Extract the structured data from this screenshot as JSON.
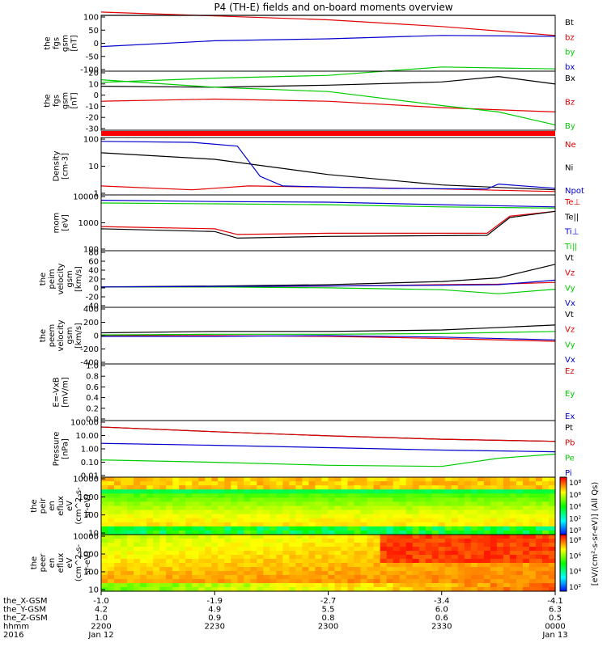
{
  "title": "P4 (TH-E) fields and on-board moments overview",
  "colors": {
    "black": "#000000",
    "red": "#e00000",
    "green": "#00cc00",
    "blue": "#0000cc"
  },
  "chart_data": [
    {
      "type": "line",
      "ylabel_lines": [
        "the",
        "fgs",
        "gsm",
        "[nT]"
      ],
      "yticks": [
        "100",
        "50",
        "0",
        "-50",
        "-100"
      ],
      "ylim": [
        -100,
        100
      ],
      "yscale": "linear",
      "series": [
        {
          "name": "Bt",
          "color": "black",
          "points": [
            [
              0,
              100
            ],
            [
              1,
              100
            ],
            [
              2,
              100
            ],
            [
              3,
              100
            ],
            [
              4,
              100
            ]
          ]
        },
        {
          "name": "bz",
          "color": "red",
          "points": [
            [
              0,
              112
            ],
            [
              1,
              98
            ],
            [
              2,
              84
            ],
            [
              3,
              60
            ],
            [
              4,
              28
            ]
          ]
        },
        {
          "name": "by",
          "color": "green",
          "points": [
            [
              0,
              -140
            ],
            [
              1,
              -125
            ],
            [
              2,
              -115
            ],
            [
              3,
              -85
            ],
            [
              4,
              -92
            ]
          ]
        },
        {
          "name": "bx",
          "color": "blue",
          "points": [
            [
              0,
              -12
            ],
            [
              1,
              9
            ],
            [
              2,
              16
            ],
            [
              3,
              28
            ],
            [
              4,
              25
            ]
          ]
        }
      ]
    },
    {
      "type": "line",
      "ylabel_lines": [
        "the",
        "fgs",
        "gsm",
        "[nT]"
      ],
      "yticks": [
        "20",
        "10",
        "0",
        "-10",
        "-20",
        "-30"
      ],
      "ylim": [
        -35,
        20
      ],
      "yscale": "linear",
      "series": [
        {
          "name": "Bx",
          "color": "black",
          "points": [
            [
              0,
              6
            ],
            [
              1,
              5
            ],
            [
              2,
              7
            ],
            [
              3,
              10
            ],
            [
              3.5,
              15
            ],
            [
              4,
              8
            ]
          ]
        },
        {
          "name": "Bz",
          "color": "red",
          "points": [
            [
              0,
              -8
            ],
            [
              1,
              -6
            ],
            [
              2,
              -8
            ],
            [
              3,
              -14
            ],
            [
              4,
              -18
            ]
          ]
        },
        {
          "name": "By",
          "color": "green",
          "points": [
            [
              0,
              12
            ],
            [
              1,
              5
            ],
            [
              2,
              1
            ],
            [
              3,
              -12
            ],
            [
              3.5,
              -18
            ],
            [
              4,
              -30
            ]
          ]
        }
      ]
    },
    {
      "type": "line",
      "ylabel_lines": [
        "Density",
        "[cm-3]"
      ],
      "yticks": [
        "100",
        "10",
        "1"
      ],
      "ylim": [
        0.7,
        300
      ],
      "yscale": "log",
      "series": [
        {
          "name": "Ne",
          "color": "red",
          "points": [
            [
              0,
              1.8
            ],
            [
              0.8,
              1.2
            ],
            [
              1.3,
              1.8
            ],
            [
              2,
              1.6
            ],
            [
              3,
              1.3
            ],
            [
              4,
              1.0
            ]
          ]
        },
        {
          "name": "Ni",
          "color": "black",
          "points": [
            [
              0,
              60
            ],
            [
              1,
              30
            ],
            [
              2,
              6
            ],
            [
              3,
              2
            ],
            [
              4,
              1.2
            ]
          ]
        },
        {
          "name": "Npot",
          "color": "blue",
          "points": [
            [
              0,
              200
            ],
            [
              0.8,
              180
            ],
            [
              1.2,
              120
            ],
            [
              1.4,
              5
            ],
            [
              1.6,
              1.8
            ],
            [
              2.5,
              1.4
            ],
            [
              3.4,
              1.3
            ],
            [
              3.5,
              2.2
            ],
            [
              4,
              1.4
            ]
          ]
        }
      ]
    },
    {
      "type": "line",
      "ylabel_lines": [
        "mom",
        "[eV]"
      ],
      "yticks": [
        "10000",
        "1000",
        "100"
      ],
      "ylim": [
        40,
        14000
      ],
      "yscale": "log",
      "series": [
        {
          "name": "Te⊥",
          "color": "red",
          "points": [
            [
              0,
              500
            ],
            [
              1,
              400
            ],
            [
              1.2,
              220
            ],
            [
              2,
              250
            ],
            [
              3.4,
              250
            ],
            [
              3.6,
              1500
            ],
            [
              4,
              2500
            ]
          ]
        },
        {
          "name": "Te||",
          "color": "black",
          "points": [
            [
              0,
              400
            ],
            [
              1,
              300
            ],
            [
              1.2,
              150
            ],
            [
              2,
              180
            ],
            [
              3.4,
              200
            ],
            [
              3.6,
              1300
            ],
            [
              4,
              2500
            ]
          ]
        },
        {
          "name": "Ti⊥",
          "color": "blue",
          "points": [
            [
              0,
              8000
            ],
            [
              1,
              7000
            ],
            [
              2,
              6500
            ],
            [
              3,
              5000
            ],
            [
              4,
              4000
            ]
          ]
        },
        {
          "name": "Ti||",
          "color": "green",
          "points": [
            [
              0,
              6000
            ],
            [
              1,
              5500
            ],
            [
              2,
              5000
            ],
            [
              3,
              4000
            ],
            [
              4,
              3500
            ]
          ]
        }
      ]
    },
    {
      "type": "line",
      "ylabel_lines": [
        "the",
        "peim",
        "velocity",
        "gsm",
        "[km/s]"
      ],
      "yticks": [
        "80",
        "60",
        "40",
        "20",
        "0",
        "-20",
        "-40"
      ],
      "ylim": [
        -45,
        80
      ],
      "yscale": "linear",
      "series": [
        {
          "name": "Vt",
          "color": "black",
          "points": [
            [
              0,
              0
            ],
            [
              1,
              2
            ],
            [
              2,
              5
            ],
            [
              3,
              12
            ],
            [
              3.5,
              20
            ],
            [
              4,
              50
            ]
          ]
        },
        {
          "name": "Vz",
          "color": "red",
          "points": [
            [
              0,
              0
            ],
            [
              1,
              0
            ],
            [
              2,
              2
            ],
            [
              3,
              5
            ],
            [
              3.5,
              6
            ],
            [
              4,
              10
            ]
          ]
        },
        {
          "name": "Vy",
          "color": "green",
          "points": [
            [
              0,
              0
            ],
            [
              1,
              0
            ],
            [
              2,
              -2
            ],
            [
              3,
              -6
            ],
            [
              3.5,
              -15
            ],
            [
              4,
              -5
            ]
          ]
        },
        {
          "name": "Vx",
          "color": "blue",
          "points": [
            [
              0,
              0
            ],
            [
              1,
              1
            ],
            [
              2,
              2
            ],
            [
              3,
              4
            ],
            [
              3.5,
              5
            ],
            [
              4,
              15
            ]
          ]
        }
      ]
    },
    {
      "type": "line",
      "ylabel_lines": [
        "the",
        "peem",
        "velocity",
        "gsm",
        "[km/s]"
      ],
      "yticks": [
        "400",
        "200",
        "0",
        "-200",
        "-400"
      ],
      "ylim": [
        -400,
        400
      ],
      "yscale": "linear",
      "series": [
        {
          "name": "Vt",
          "color": "black",
          "points": [
            [
              0,
              40
            ],
            [
              1,
              60
            ],
            [
              2,
              60
            ],
            [
              3,
              80
            ],
            [
              4,
              150
            ]
          ]
        },
        {
          "name": "Vz",
          "color": "red",
          "points": [
            [
              0,
              0
            ],
            [
              1,
              0
            ],
            [
              2,
              -10
            ],
            [
              3,
              -40
            ],
            [
              4,
              -80
            ]
          ]
        },
        {
          "name": "Vy",
          "color": "green",
          "points": [
            [
              0,
              10
            ],
            [
              1,
              20
            ],
            [
              2,
              20
            ],
            [
              3,
              30
            ],
            [
              4,
              60
            ]
          ]
        },
        {
          "name": "Vx",
          "color": "blue",
          "points": [
            [
              0,
              -10
            ],
            [
              1,
              -10
            ],
            [
              2,
              0
            ],
            [
              3,
              -20
            ],
            [
              4,
              -60
            ]
          ]
        }
      ]
    },
    {
      "type": "line",
      "ylabel_lines": [
        "E=-VxB",
        "[mV/m]"
      ],
      "yticks": [
        "1.0",
        "0.8",
        "0.6",
        "0.4",
        "0.2",
        "0.0"
      ],
      "ylim": [
        0,
        1
      ],
      "yscale": "linear",
      "series": [
        {
          "name": "Ez",
          "color": "red",
          "points": []
        },
        {
          "name": "Ey",
          "color": "green",
          "points": []
        },
        {
          "name": "Ex",
          "color": "blue",
          "points": []
        }
      ]
    },
    {
      "type": "line",
      "ylabel_lines": [
        "Pressure",
        "[nPa]"
      ],
      "yticks": [
        "100.00",
        "10.00",
        "1.00",
        "0.10",
        "0.01"
      ],
      "ylim": [
        0.008,
        120
      ],
      "yscale": "log",
      "series": [
        {
          "name": "Pt",
          "color": "black",
          "points": [
            [
              0,
              40
            ],
            [
              1,
              18
            ],
            [
              2,
              9
            ],
            [
              3,
              5
            ],
            [
              4,
              3.5
            ]
          ]
        },
        {
          "name": "Pb",
          "color": "red",
          "points": [
            [
              0,
              40
            ],
            [
              1,
              18
            ],
            [
              2,
              9
            ],
            [
              3,
              5
            ],
            [
              4,
              3.5
            ]
          ]
        },
        {
          "name": "Pe",
          "color": "green",
          "points": [
            [
              0,
              0.15
            ],
            [
              1,
              0.1
            ],
            [
              2,
              0.06
            ],
            [
              3,
              0.05
            ],
            [
              3.5,
              0.2
            ],
            [
              4,
              0.4
            ]
          ]
        },
        {
          "name": "Pi",
          "color": "blue",
          "points": [
            [
              0,
              2.5
            ],
            [
              1,
              1.8
            ],
            [
              2,
              1.2
            ],
            [
              3,
              0.8
            ],
            [
              4,
              0.6
            ]
          ]
        }
      ]
    },
    {
      "type": "heatmap",
      "ylabel_lines": [
        "the",
        "peir",
        "en",
        "eflux",
        "eV",
        "(cm^2-s-",
        "sr-eV)"
      ],
      "yticks": [
        "10000",
        "1000",
        "100",
        "10"
      ]
    },
    {
      "type": "heatmap",
      "ylabel_lines": [
        "the",
        "peer",
        "en",
        "eflux",
        "eV",
        "(cm^2-s-",
        "sr-eV)"
      ],
      "yticks": [
        "10000",
        "1000",
        "100",
        "10"
      ]
    }
  ],
  "colorbars": [
    {
      "ticks": [
        "10⁸",
        "10⁶",
        "10⁴",
        "10²",
        "10⁰"
      ]
    },
    {
      "ticks": [
        "10⁸",
        "10⁶",
        "10⁴",
        "10²"
      ]
    }
  ],
  "colorbar_label": "[eV/(cm²-s-sr-eV)] (All Qs)",
  "xaxis": {
    "rows": [
      {
        "label": "the_X-GSM",
        "values": [
          "-1.0",
          "-1.9",
          "-2.7",
          "-3.4",
          "-4.1"
        ]
      },
      {
        "label": "the_Y-GSM",
        "values": [
          "4.2",
          "4.9",
          "5.5",
          "6.0",
          "6.3"
        ]
      },
      {
        "label": "the_Z-GSM",
        "values": [
          "1.0",
          "0.9",
          "0.8",
          "0.6",
          "0.5"
        ]
      },
      {
        "label": "hhmm",
        "values": [
          "2200",
          "2230",
          "2300",
          "2330",
          "0000"
        ]
      },
      {
        "label": "2016",
        "values": [
          "Jan 12",
          "",
          "",
          "",
          "Jan 13"
        ]
      }
    ]
  }
}
